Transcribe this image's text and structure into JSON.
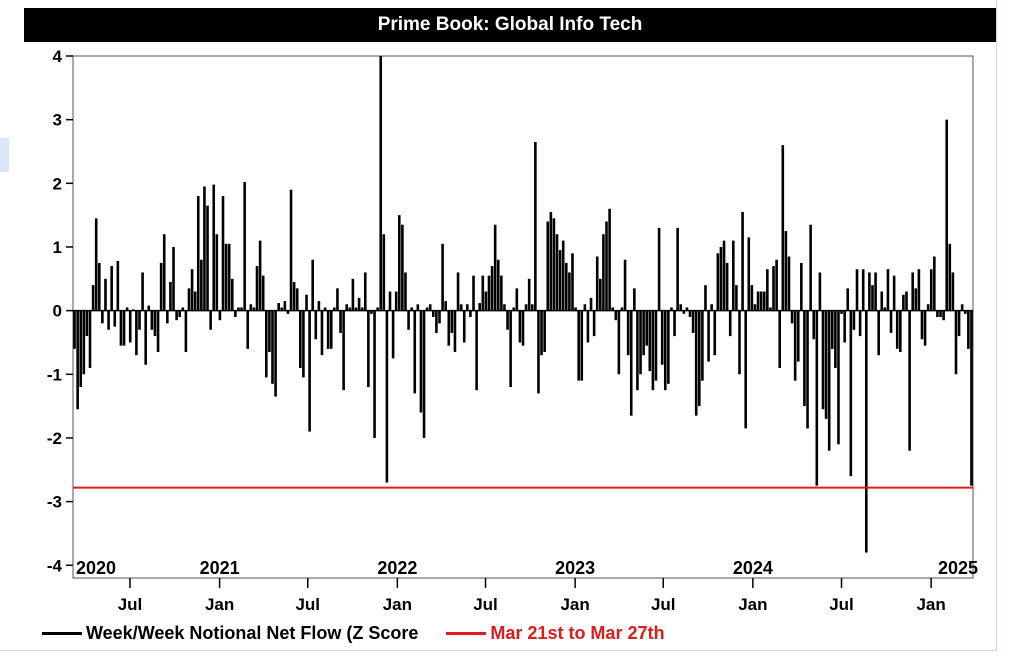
{
  "colors": {
    "flow": "#000000",
    "marker": "#e01b1b",
    "background": "#ffffff"
  },
  "chart_data": {
    "type": "bar",
    "title": "Prime Book: Global Info Tech",
    "xlabel": "",
    "ylabel": "",
    "ylim": [
      -4.2,
      4.0
    ],
    "yticks": [
      4,
      3,
      2,
      1,
      0,
      -1,
      -2,
      -3,
      -4
    ],
    "grid": false,
    "legend_position": "bottom-left",
    "x_start": "2020-03-06",
    "x_end": "2025-03-28",
    "interval_days": 7,
    "year_labels": [
      {
        "label": "2020",
        "date": "2020-03-06"
      },
      {
        "label": "2021",
        "date": "2021-01-01"
      },
      {
        "label": "2022",
        "date": "2022-01-01"
      },
      {
        "label": "2023",
        "date": "2023-01-01"
      },
      {
        "label": "2024",
        "date": "2024-01-01"
      },
      {
        "label": "2025",
        "date": "2025-03-28"
      }
    ],
    "month_ticks": [
      {
        "label": "Jul",
        "date": "2020-07-01"
      },
      {
        "label": "Jan",
        "date": "2021-01-01"
      },
      {
        "label": "Jul",
        "date": "2021-07-01"
      },
      {
        "label": "Jan",
        "date": "2022-01-01"
      },
      {
        "label": "Jul",
        "date": "2022-07-01"
      },
      {
        "label": "Jan",
        "date": "2023-01-01"
      },
      {
        "label": "Jul",
        "date": "2023-07-01"
      },
      {
        "label": "Jan",
        "date": "2024-01-01"
      },
      {
        "label": "Jul",
        "date": "2024-07-01"
      },
      {
        "label": "Jan",
        "date": "2025-01-01"
      }
    ],
    "reference_line": {
      "value": -2.78,
      "label": "Mar 21st to Mar 27th"
    },
    "series": [
      {
        "name": "Week/Week Notional Net Flow (Z Score",
        "values": [
          -0.6,
          -1.55,
          -1.2,
          -1.0,
          -0.4,
          -0.9,
          0.4,
          1.45,
          0.75,
          -0.2,
          0.5,
          -0.3,
          0.7,
          -0.25,
          0.78,
          -0.55,
          -0.55,
          0.05,
          -0.5,
          0.02,
          -0.7,
          -0.3,
          0.6,
          -0.85,
          0.08,
          -0.3,
          -0.4,
          -0.65,
          0.75,
          1.2,
          -0.2,
          0.45,
          1.0,
          -0.15,
          -0.1,
          0.05,
          -0.65,
          0.35,
          0.65,
          0.3,
          1.8,
          0.8,
          1.95,
          1.65,
          -0.3,
          1.98,
          1.2,
          -0.15,
          1.8,
          1.05,
          1.05,
          0.5,
          -0.1,
          0.05,
          0.05,
          2.02,
          -0.6,
          0.1,
          0.05,
          0.7,
          1.1,
          0.55,
          -1.05,
          -0.65,
          -1.15,
          -1.35,
          0.12,
          0.05,
          0.15,
          -0.05,
          1.9,
          0.45,
          0.35,
          -0.9,
          -1.05,
          0.25,
          -1.9,
          0.8,
          -0.45,
          0.15,
          -0.7,
          0.05,
          -0.6,
          -0.6,
          0.05,
          0.35,
          -0.35,
          -1.25,
          0.1,
          0.05,
          0.5,
          0.05,
          0.2,
          0.05,
          0.6,
          -1.2,
          -0.05,
          -2.0,
          0.05,
          4.0,
          1.2,
          -2.7,
          0.3,
          -0.75,
          0.3,
          1.5,
          1.35,
          0.6,
          -0.3,
          0.05,
          -1.3,
          0.1,
          -1.6,
          -2.0,
          0.05,
          0.1,
          -0.1,
          -0.35,
          -0.2,
          1.05,
          0.15,
          -0.55,
          -0.35,
          -0.65,
          0.6,
          0.1,
          -0.5,
          0.1,
          -0.1,
          0.55,
          -1.25,
          0.12,
          0.55,
          0.3,
          0.55,
          0.7,
          1.35,
          0.8,
          0.55,
          0.1,
          -0.3,
          -1.2,
          0.05,
          0.35,
          -0.5,
          -0.55,
          0.1,
          0.5,
          0.1,
          2.65,
          -1.3,
          -0.7,
          -0.65,
          1.4,
          1.55,
          1.45,
          1.2,
          0.95,
          1.1,
          0.75,
          0.6,
          0.9,
          0.05,
          -1.1,
          -1.1,
          0.1,
          -0.5,
          0.2,
          -0.4,
          0.85,
          0.5,
          1.2,
          1.4,
          1.6,
          0.05,
          -0.15,
          -1.0,
          0.05,
          0.8,
          -0.7,
          -1.65,
          0.35,
          -1.25,
          -1.0,
          -0.7,
          -0.55,
          -0.95,
          -1.25,
          -1.1,
          1.3,
          -0.85,
          -1.25,
          -1.15,
          0.05,
          -0.4,
          1.3,
          0.1,
          -0.05,
          0.05,
          -0.1,
          -0.35,
          -1.65,
          -1.5,
          -1.1,
          0.4,
          -0.8,
          0.1,
          -0.7,
          0.9,
          1.0,
          1.1,
          0.75,
          -0.4,
          1.1,
          0.4,
          -1.0,
          1.55,
          -1.85,
          1.15,
          0.4,
          0.1,
          0.3,
          0.3,
          0.3,
          0.65,
          0.05,
          0.7,
          0.8,
          -0.9,
          2.6,
          1.25,
          0.85,
          -0.2,
          -1.1,
          -0.8,
          0.75,
          -1.5,
          -1.85,
          1.35,
          -0.45,
          -2.75,
          0.6,
          -1.55,
          -1.7,
          -2.2,
          -0.6,
          -0.9,
          -2.1,
          -0.05,
          -0.5,
          0.35,
          -2.6,
          -0.3,
          0.65,
          -0.4,
          0.65,
          -3.8,
          0.6,
          0.4,
          0.6,
          -0.7,
          0.3,
          0.05,
          0.65,
          -0.35,
          0.55,
          -0.6,
          -0.65,
          0.25,
          0.3,
          -2.2,
          0.6,
          0.35,
          0.65,
          -0.45,
          -0.55,
          0.1,
          0.65,
          0.85,
          -0.1,
          -0.1,
          -0.15,
          3.0,
          1.05,
          0.6,
          -1.0,
          -0.4,
          0.1,
          -0.05,
          -0.6,
          -2.75
        ]
      }
    ]
  }
}
